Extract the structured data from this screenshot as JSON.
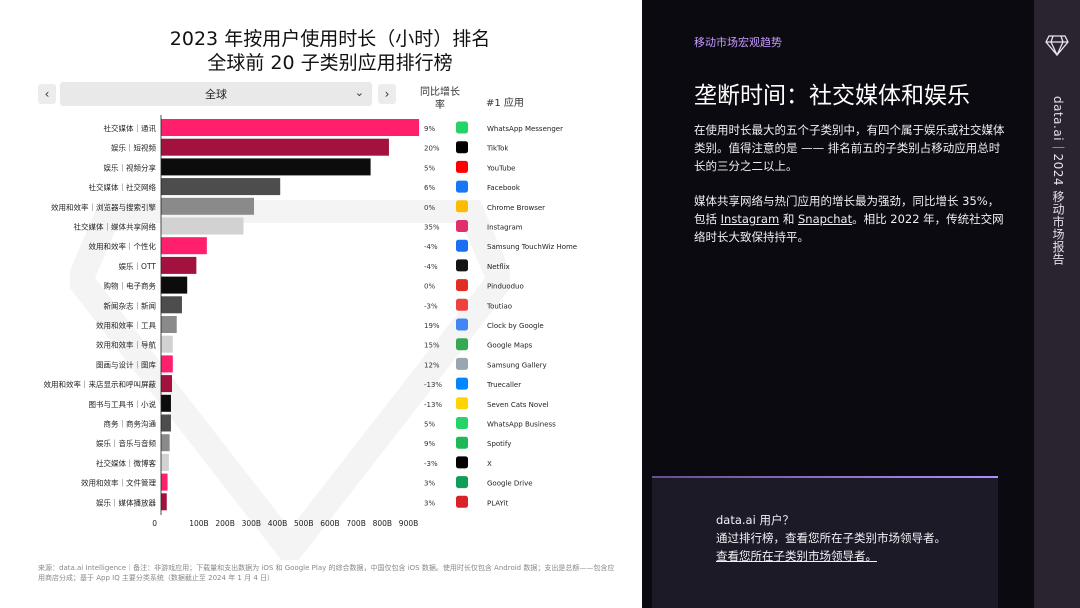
{
  "header": {
    "title_line1": "2023 年按用户使用时长（小时）排名",
    "title_line2": "全球前 20 子类别应用排行榜"
  },
  "filter": {
    "region_value": "全球",
    "prev_icon": "chevron-left-icon",
    "next_icon": "chevron-right-icon"
  },
  "columns": {
    "growth_header": "同比增长率",
    "top_app_header": "#1 应用"
  },
  "chart_data": {
    "type": "bar",
    "orientation": "horizontal",
    "categories": [
      "社交媒体｜通讯",
      "娱乐｜短视频",
      "娱乐｜视频分享",
      "社交媒体｜社交网络",
      "效用和效率｜浏览器与搜索引擎",
      "社交媒体｜媒体共享网络",
      "效用和效率｜个性化",
      "娱乐｜OTT",
      "购物｜电子商务",
      "新闻杂志｜新闻",
      "效用和效率｜工具",
      "效用和效率｜导航",
      "图画与设计｜图库",
      "效用和效率｜来店显示和呼叫屏蔽",
      "图书与工具书｜小说",
      "商务｜商务沟通",
      "娱乐｜音乐与音频",
      "社交媒体｜微博客",
      "效用和效率｜文件管理",
      "娱乐｜媒体播放器"
    ],
    "values": [
      985,
      870,
      800,
      455,
      355,
      315,
      175,
      135,
      100,
      80,
      60,
      45,
      45,
      42,
      38,
      38,
      33,
      30,
      25,
      22
    ],
    "bar_colors": [
      "#ff1f6d",
      "#a3123f",
      "#0c0c0c",
      "#4d4d4d",
      "#8a8a8a",
      "#d2d2d2",
      "#ff1f6d",
      "#a3123f",
      "#0c0c0c",
      "#4d4d4d",
      "#8a8a8a",
      "#d2d2d2",
      "#ff1f6d",
      "#a3123f",
      "#0c0c0c",
      "#4d4d4d",
      "#8a8a8a",
      "#d2d2d2",
      "#ff1f6d",
      "#a3123f"
    ],
    "growth": [
      "9%",
      "20%",
      "5%",
      "6%",
      "0%",
      "35%",
      "-4%",
      "-4%",
      "0%",
      "-3%",
      "19%",
      "15%",
      "12%",
      "-13%",
      "-13%",
      "5%",
      "9%",
      "-3%",
      "3%",
      "3%"
    ],
    "top_apps": [
      "WhatsApp Messenger",
      "TikTok",
      "YouTube",
      "Facebook",
      "Chrome Browser",
      "Instagram",
      "Samsung TouchWiz Home",
      "Netflix",
      "Pinduoduo",
      "Toutiao",
      "Clock by Google",
      "Google Maps",
      "Samsung Gallery",
      "Truecaller",
      "Seven Cats Novel",
      "WhatsApp Business",
      "Spotify",
      "X",
      "Google Drive",
      "PLAYit"
    ],
    "app_icons": [
      {
        "name": "whatsapp-icon",
        "color": "#25d366"
      },
      {
        "name": "tiktok-icon",
        "color": "#000000"
      },
      {
        "name": "youtube-icon",
        "color": "#ff0000"
      },
      {
        "name": "facebook-icon",
        "color": "#1877f2"
      },
      {
        "name": "chrome-icon",
        "color": "#fbbc04"
      },
      {
        "name": "instagram-icon",
        "color": "#e1306c"
      },
      {
        "name": "samsung-home-icon",
        "color": "#1b6ff2"
      },
      {
        "name": "netflix-icon",
        "color": "#141414"
      },
      {
        "name": "pinduoduo-icon",
        "color": "#e02e24"
      },
      {
        "name": "toutiao-icon",
        "color": "#f04142"
      },
      {
        "name": "clock-icon",
        "color": "#4285f4"
      },
      {
        "name": "google-maps-icon",
        "color": "#34a853"
      },
      {
        "name": "samsung-gallery-icon",
        "color": "#9aa5b1"
      },
      {
        "name": "truecaller-icon",
        "color": "#0087ff"
      },
      {
        "name": "seven-cats-icon",
        "color": "#ffd400"
      },
      {
        "name": "whatsapp-business-icon",
        "color": "#25d366"
      },
      {
        "name": "spotify-icon",
        "color": "#1db954"
      },
      {
        "name": "x-icon",
        "color": "#000000"
      },
      {
        "name": "google-drive-icon",
        "color": "#0f9d58"
      },
      {
        "name": "playit-icon",
        "color": "#d8232a"
      }
    ],
    "x_ticks": [
      "0",
      "100B",
      "200B",
      "300B",
      "400B",
      "500B",
      "600B",
      "700B",
      "800B",
      "900B"
    ],
    "xlim": [
      0,
      1000
    ],
    "title": "2023 年按用户使用时长（小时）排名 全球前 20 子类别应用排行榜",
    "xlabel": "",
    "ylabel": "",
    "grid": false
  },
  "footnote": "来源：data.ai Intelligence｜备注：非游戏应用；下载量和支出数据为 iOS 和 Google Play 的综合数据，中国仅包含 iOS 数据。使用时长仅包含 Android 数据；支出是总额——包含应用商店分成；基于 App IQ 主要分类系统（数据截止至 2024 年 1 月 4 日）",
  "sidebar": {
    "section_tag": "移动市场宏观趋势",
    "title": "垄断时间：社交媒体和娱乐",
    "para1": "在使用时长最大的五个子类别中，有四个属于娱乐或社交媒体类别。值得注意的是 —— 排名前五的子类别占移动应用总时长的三分之二以上。",
    "para2_a": "媒体共享网络与热门应用的增长最为强劲，同比增长 35%，包括 ",
    "para2_link1": "Instagram",
    "para2_b": " 和 ",
    "para2_link2": "Snapchat",
    "para2_c": "。相比 2022 年，传统社交网络时长大致保持持平。",
    "side_label": "data.ai｜2024 移动市场报告",
    "brand_icon": "diamond-logo-icon",
    "cta_line1": "data.ai 用户？",
    "cta_line2": "通过排行榜，查看您所在子类别市场领导者。",
    "cta_link": "查看您所在子类别市场领导者。"
  }
}
